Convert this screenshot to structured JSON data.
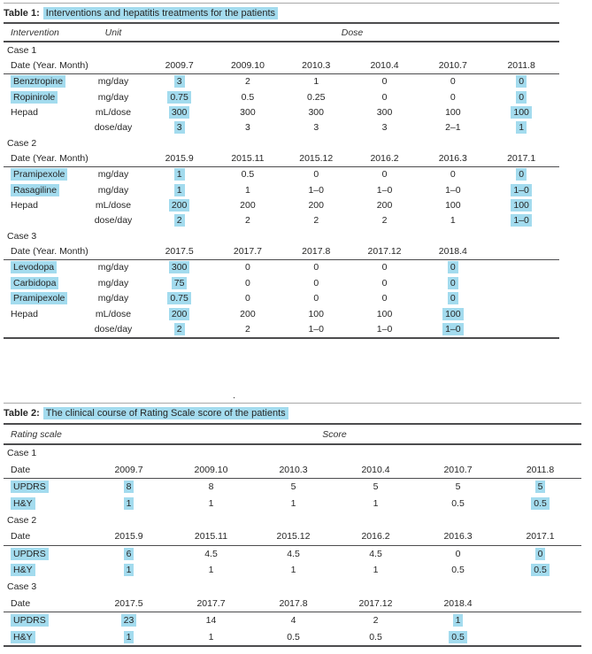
{
  "page": {
    "highlight_color": "#a3dbee",
    "text_color": "#262626",
    "rule_color": "#4c4c4e"
  },
  "separator": {
    "dot": "."
  },
  "table1": {
    "title_label": "Table 1:",
    "title_text": "Interventions and hepatitis treatments for the patients",
    "headers": {
      "intervention": "Intervention",
      "unit": "Unit",
      "dose": "Dose"
    },
    "date_label": "Date (Year. Month)",
    "cases": [
      {
        "name": "Case 1",
        "dates": [
          "2009.7",
          "2009.10",
          "2010.3",
          "2010.4",
          "2010.7",
          "2011.8"
        ],
        "rows": [
          {
            "label": "Benztropine",
            "label_hl": true,
            "unit": "mg/day",
            "values": [
              "3",
              "2",
              "1",
              "0",
              "0",
              "0"
            ],
            "hl": [
              0,
              5
            ]
          },
          {
            "label": "Ropinirole",
            "label_hl": true,
            "unit": "mg/day",
            "values": [
              "0.75",
              "0.5",
              "0.25",
              "0",
              "0",
              "0"
            ],
            "hl": [
              0,
              5
            ]
          },
          {
            "label": "Hepad",
            "label_hl": false,
            "unit": "mL/dose",
            "values": [
              "300",
              "300",
              "300",
              "300",
              "100",
              "100"
            ],
            "hl": [
              0,
              5
            ]
          },
          {
            "label": "",
            "label_hl": false,
            "unit": "dose/day",
            "values": [
              "3",
              "3",
              "3",
              "3",
              "2–1",
              "1"
            ],
            "hl": [
              0,
              5
            ]
          }
        ]
      },
      {
        "name": "Case 2",
        "dates": [
          "2015.9",
          "2015.11",
          "2015.12",
          "2016.2",
          "2016.3",
          "2017.1"
        ],
        "rows": [
          {
            "label": "Pramipexole",
            "label_hl": true,
            "unit": "mg/day",
            "values": [
              "1",
              "0.5",
              "0",
              "0",
              "0",
              "0"
            ],
            "hl": [
              0,
              5
            ]
          },
          {
            "label": "Rasagiline",
            "label_hl": true,
            "unit": "mg/day",
            "values": [
              "1",
              "1",
              "1–0",
              "1–0",
              "1–0",
              "1–0"
            ],
            "hl": [
              0,
              5
            ]
          },
          {
            "label": "Hepad",
            "label_hl": false,
            "unit": "mL/dose",
            "values": [
              "200",
              "200",
              "200",
              "200",
              "100",
              "100"
            ],
            "hl": [
              0,
              5
            ]
          },
          {
            "label": "",
            "label_hl": false,
            "unit": "dose/day",
            "values": [
              "2",
              "2",
              "2",
              "2",
              "1",
              "1–0"
            ],
            "hl": [
              0,
              5
            ]
          }
        ]
      },
      {
        "name": "Case 3",
        "dates": [
          "2017.5",
          "2017.7",
          "2017.8",
          "2017.12",
          "2018.4",
          ""
        ],
        "rows": [
          {
            "label": "Levodopa",
            "label_hl": true,
            "unit": "mg/day",
            "values": [
              "300",
              "0",
              "0",
              "0",
              "0",
              ""
            ],
            "hl": [
              0,
              4
            ]
          },
          {
            "label": "Carbidopa",
            "label_hl": true,
            "unit": "mg/day",
            "values": [
              "75",
              "0",
              "0",
              "0",
              "0",
              ""
            ],
            "hl": [
              0,
              4
            ]
          },
          {
            "label": "Pramipexole",
            "label_hl": true,
            "unit": "mg/day",
            "values": [
              "0.75",
              "0",
              "0",
              "0",
              "0",
              ""
            ],
            "hl": [
              0,
              4
            ]
          },
          {
            "label": "Hepad",
            "label_hl": false,
            "unit": "mL/dose",
            "values": [
              "200",
              "200",
              "100",
              "100",
              "100",
              ""
            ],
            "hl": [
              0,
              4
            ]
          },
          {
            "label": "",
            "label_hl": false,
            "unit": "dose/day",
            "values": [
              "2",
              "2",
              "1–0",
              "1–0",
              "1–0",
              ""
            ],
            "hl": [
              0,
              4
            ]
          }
        ]
      }
    ]
  },
  "table2": {
    "title_label": "Table 2:",
    "title_text": "The clinical course of Rating Scale score of the patients",
    "headers": {
      "rating_scale": "Rating scale",
      "score": "Score"
    },
    "date_label": "Date",
    "cases": [
      {
        "name": "Case 1",
        "dates": [
          "2009.7",
          "2009.10",
          "2010.3",
          "2010.4",
          "2010.7",
          "2011.8"
        ],
        "rows": [
          {
            "label": "UPDRS",
            "label_hl": true,
            "values": [
              "8",
              "8",
              "5",
              "5",
              "5",
              "5"
            ],
            "hl": [
              0,
              5
            ]
          },
          {
            "label": "H&Y",
            "label_hl": true,
            "values": [
              "1",
              "1",
              "1",
              "1",
              "0.5",
              "0.5"
            ],
            "hl": [
              0,
              5
            ]
          }
        ]
      },
      {
        "name": "Case 2",
        "dates": [
          "2015.9",
          "2015.11",
          "2015.12",
          "2016.2",
          "2016.3",
          "2017.1"
        ],
        "rows": [
          {
            "label": "UPDRS",
            "label_hl": true,
            "values": [
              "6",
              "4.5",
              "4.5",
              "4.5",
              "0",
              "0"
            ],
            "hl": [
              0,
              5
            ]
          },
          {
            "label": "H&Y",
            "label_hl": true,
            "values": [
              "1",
              "1",
              "1",
              "1",
              "0.5",
              "0.5"
            ],
            "hl": [
              0,
              5
            ]
          }
        ]
      },
      {
        "name": "Case 3",
        "dates": [
          "2017.5",
          "2017.7",
          "2017.8",
          "2017.12",
          "2018.4",
          ""
        ],
        "rows": [
          {
            "label": "UPDRS",
            "label_hl": true,
            "values": [
              "23",
              "14",
              "4",
              "2",
              "1",
              ""
            ],
            "hl": [
              0,
              4
            ]
          },
          {
            "label": "H&Y",
            "label_hl": true,
            "values": [
              "1",
              "1",
              "0.5",
              "0.5",
              "0.5",
              ""
            ],
            "hl": [
              0,
              4
            ]
          }
        ]
      }
    ]
  }
}
